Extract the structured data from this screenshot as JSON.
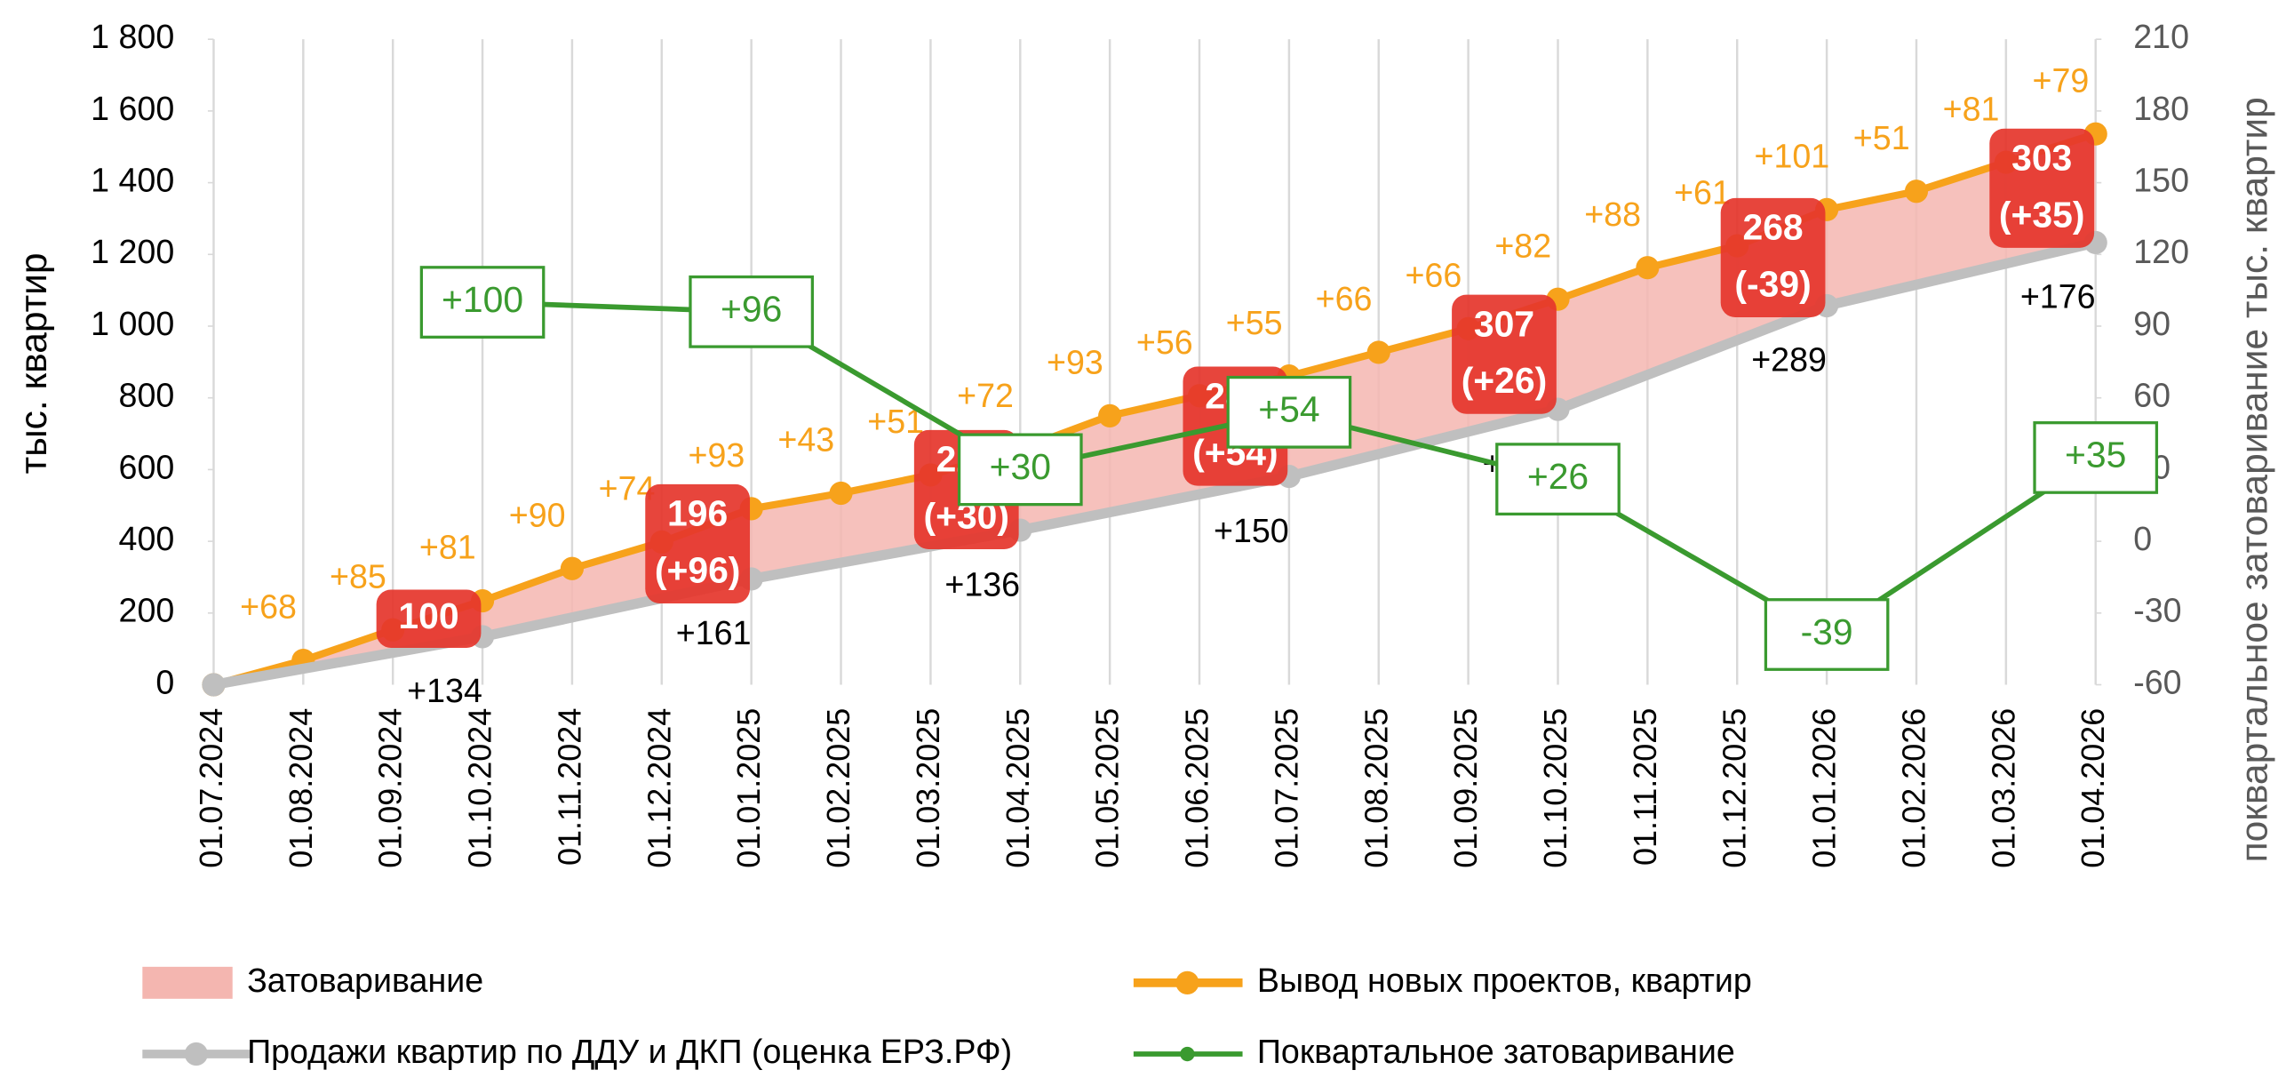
{
  "chart_data": {
    "type": "line",
    "ylabel": "тыс. квартир",
    "y2label": "поквартальное затоваривание тыс. квартир",
    "categories": [
      "01.07.2024",
      "01.08.2024",
      "01.09.2024",
      "01.10.2024",
      "01.11.2024",
      "01.12.2024",
      "01.01.2025",
      "01.02.2025",
      "01.03.2025",
      "01.04.2025",
      "01.05.2025",
      "01.06.2025",
      "01.07.2025",
      "01.08.2025",
      "01.09.2025",
      "01.10.2025",
      "01.11.2025",
      "01.12.2025",
      "01.01.2026",
      "01.02.2026",
      "01.03.2026",
      "01.04.2026"
    ],
    "ylim": [
      0,
      1800
    ],
    "yticks": [
      0,
      200,
      400,
      600,
      800,
      {
        "value": 1000,
        "label": "1 000"
      },
      {
        "value": 1200,
        "label": "1 200"
      },
      {
        "value": 1400,
        "label": "1 400"
      },
      {
        "value": 1600,
        "label": "1 600"
      },
      {
        "value": 1800,
        "label": "1 800"
      }
    ],
    "y2lim": [
      -60,
      210
    ],
    "y2ticks": [
      -60,
      -30,
      0,
      30,
      60,
      90,
      120,
      150,
      180,
      210
    ],
    "grid": "x",
    "series": [
      {
        "name": "Затоваривание",
        "type": "area",
        "color": "#f4b6b0",
        "label_color": "#e5352b",
        "x": [
          "01.10.2024",
          "01.01.2025",
          "01.04.2025",
          "01.07.2025",
          "01.10.2025",
          "01.01.2026",
          "01.04.2026"
        ],
        "values": [
          100,
          196,
          226,
          281,
          307,
          268,
          303
        ],
        "change_labels": [
          null,
          "(+96)",
          "(+30)",
          "(+54)",
          "(+26)",
          "(-39)",
          "(+35)"
        ]
      },
      {
        "name": "Вывод новых проектов, квартир",
        "type": "cumulative",
        "color": "#f7a21b",
        "values": [
          0,
          68,
          85,
          81,
          90,
          74,
          93,
          43,
          51,
          72,
          93,
          56,
          55,
          66,
          66,
          82,
          88,
          61,
          101,
          51,
          81,
          79
        ],
        "value_labels": [
          null,
          "+68",
          "+85",
          "+81",
          "+90",
          "+74",
          "+93",
          "+43",
          "+51",
          "+72",
          "+93",
          "+56",
          "+55",
          "+66",
          "+66",
          "+82",
          "+88",
          "+61",
          "+101",
          "+51",
          "+81",
          "+79"
        ]
      },
      {
        "name": "Продажи квартир по ДДУ и ДКП (оценка ЕРЗ.РФ)",
        "type": "cumulative",
        "color": "#bfbfbf",
        "x": [
          "01.07.2024",
          "01.10.2024",
          "01.01.2025",
          "01.04.2025",
          "01.07.2025",
          "01.10.2025",
          "01.01.2026",
          "01.04.2026"
        ],
        "values": [
          0,
          134,
          161,
          136,
          150,
          187,
          289,
          176
        ],
        "value_labels": [
          null,
          "+134",
          "+161",
          "+136",
          "+150",
          "+187",
          "+289",
          "+176"
        ]
      },
      {
        "name": "Поквартальное затоваривание",
        "type": "line",
        "axis": "y2",
        "color": "#3a9a2f",
        "x": [
          "01.10.2024",
          "01.01.2025",
          "01.04.2025",
          "01.07.2025",
          "01.10.2025",
          "01.01.2026",
          "01.04.2026"
        ],
        "values": [
          100,
          96,
          30,
          54,
          26,
          -39,
          35
        ],
        "value_labels": [
          "+100",
          "+96",
          "+30",
          "+54",
          "+26",
          "-39",
          "+35"
        ]
      }
    ]
  }
}
